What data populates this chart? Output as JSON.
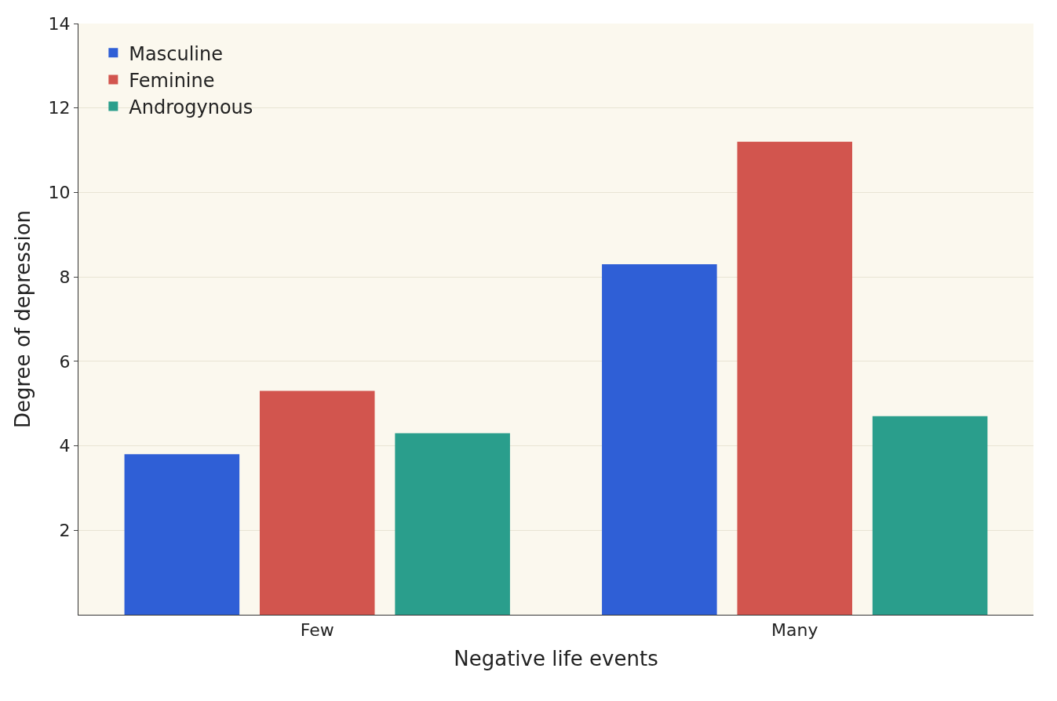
{
  "chart_data": {
    "type": "bar",
    "xlabel": "Negative life events",
    "ylabel": "Degree of depression",
    "categories": [
      "Few",
      "Many"
    ],
    "series": [
      {
        "name": "Masculine",
        "color": "#2f5fd6",
        "values": [
          3.8,
          8.3
        ]
      },
      {
        "name": "Feminine",
        "color": "#d2554e",
        "values": [
          5.3,
          11.2
        ]
      },
      {
        "name": "Androgynous",
        "color": "#2a9e8c",
        "values": [
          4.3,
          4.7
        ]
      }
    ],
    "ylim": [
      0,
      14
    ],
    "yticks": [
      2,
      4,
      6,
      8,
      10,
      12,
      14
    ],
    "grid": "y",
    "legend": "top left"
  }
}
